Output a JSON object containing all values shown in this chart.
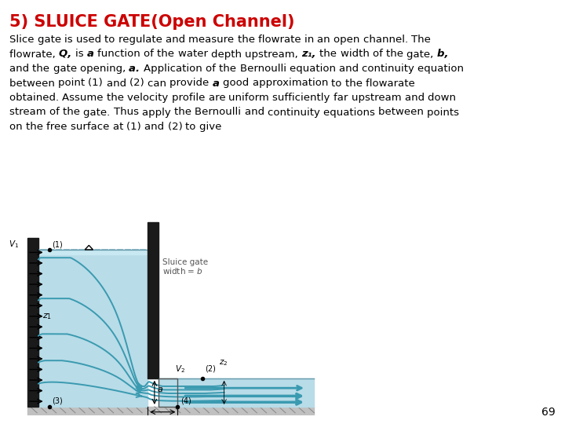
{
  "title": "5) SLUICE GATE(Open Channel)",
  "title_color": "#cc0000",
  "title_fontsize": 15,
  "body_lines": [
    "Slice gate is used to regulate and measure the flowrate in an open channel. The",
    "flowrate, Q, is a function of the water depth upstream, z₁, the width of the gate, b,",
    "and the gate opening, a. Application of the Bernoulli equation and continuity equation",
    "between point (1) and (2) can provide a good approximation to the flowarate",
    "obtained. Assume the velocity profile are uniform sufficiently far upstream and down",
    "stream of the gate. Thus apply the Bernoulli and continuity equations between points",
    "on the free surface at (1) and (2) to give"
  ],
  "page_number": "69",
  "bg_color": "#ffffff",
  "body_fontsize": 9.5,
  "water_color": "#b8dce8",
  "water_surface_color": "#c8e8f2",
  "gate_color": "#1a1a1a",
  "flow_line_color": "#3a9ab0",
  "wall_color": "#2a2a2a",
  "ground_color": "#c0c0c0",
  "text_color": "#000000"
}
